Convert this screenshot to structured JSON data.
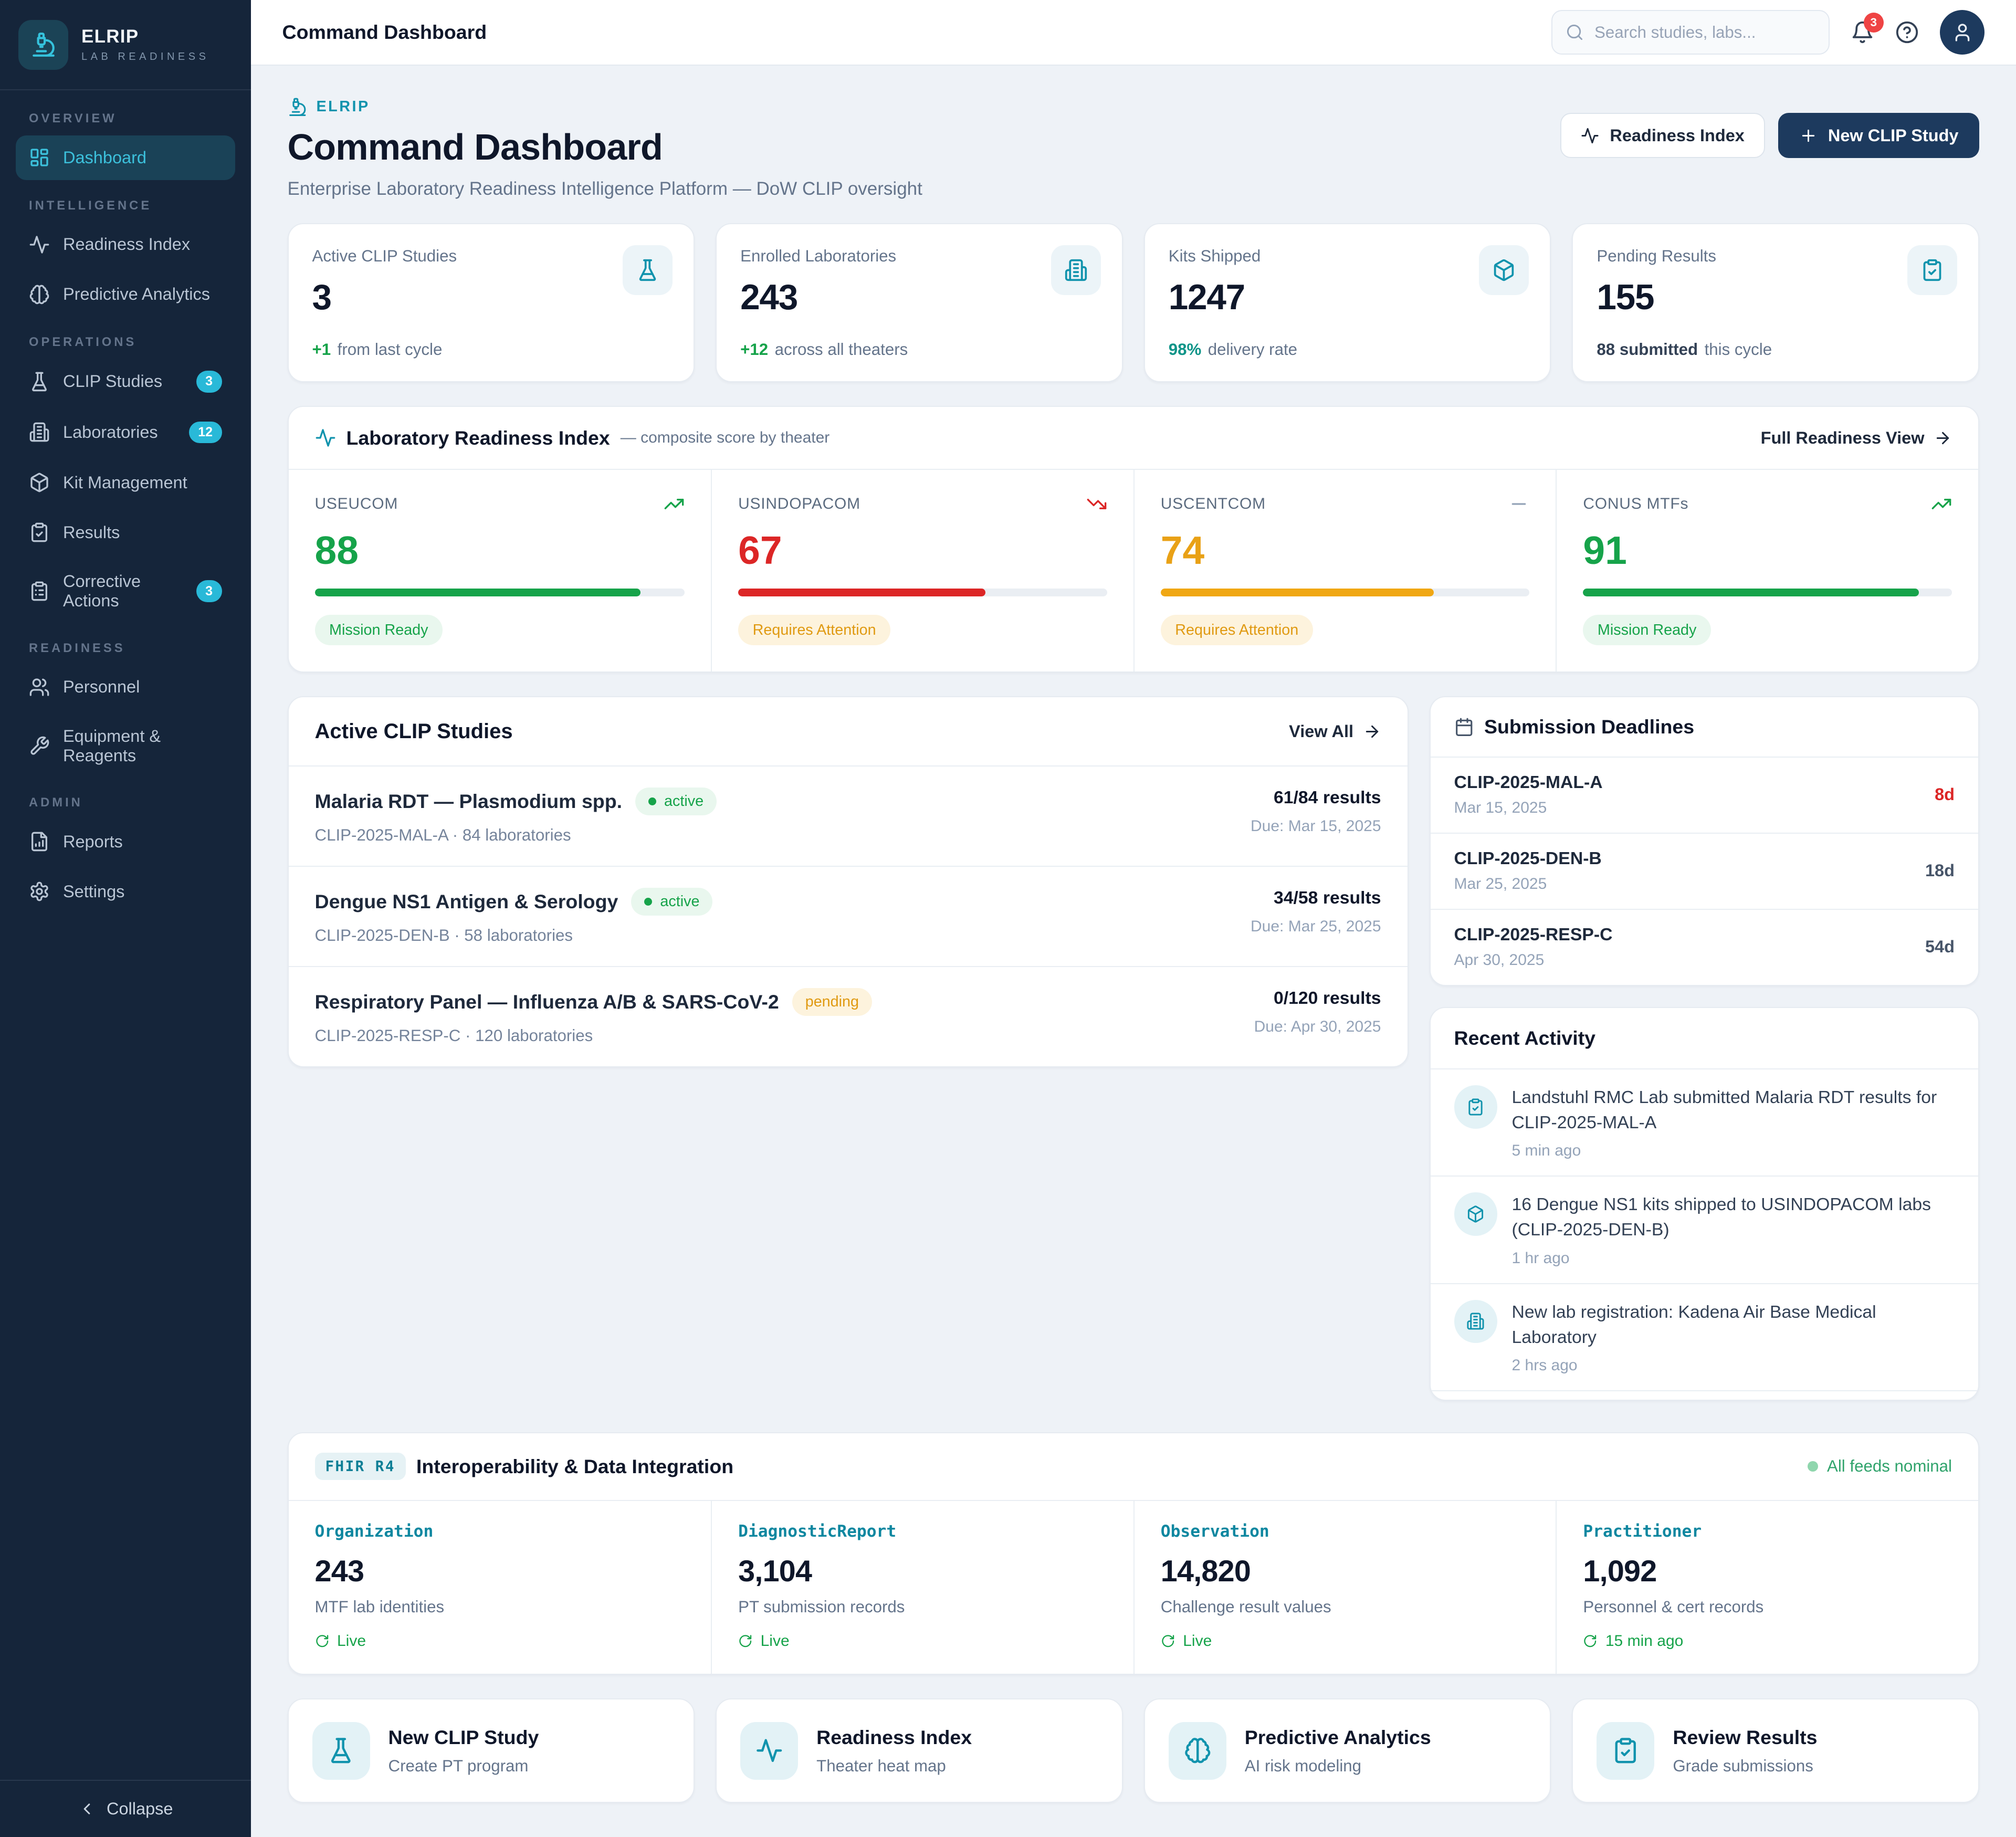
{
  "colors": {
    "sidebar_navy": "#15253a",
    "accent_cyan": "#3cc1dc",
    "accent_teal": "#1193ad",
    "primary_navy": "#1d3a5e",
    "green": "#16a34a",
    "red": "#dc2626",
    "amber": "#f0a714",
    "badge_cyan": "#29b9d8",
    "notification_red": "#ef4444"
  },
  "topbar": {
    "title": "Command Dashboard",
    "search_placeholder": "Search studies, labs...",
    "notification_count": "3"
  },
  "sidebar": {
    "brand": {
      "name": "ELRIP",
      "tagline": "LAB READINESS",
      "icon": "microscope-icon"
    },
    "sections": [
      {
        "label": "OVERVIEW",
        "items": [
          {
            "label": "Dashboard",
            "icon": "dashboard-icon",
            "active": true
          }
        ]
      },
      {
        "label": "INTELLIGENCE",
        "items": [
          {
            "label": "Readiness Index",
            "icon": "activity-icon"
          },
          {
            "label": "Predictive Analytics",
            "icon": "brain-icon"
          }
        ]
      },
      {
        "label": "OPERATIONS",
        "items": [
          {
            "label": "CLIP Studies",
            "icon": "flask-icon",
            "badge": "3"
          },
          {
            "label": "Laboratories",
            "icon": "building-icon",
            "badge": "12"
          },
          {
            "label": "Kit Management",
            "icon": "package-icon"
          },
          {
            "label": "Results",
            "icon": "clipboard-check-icon"
          },
          {
            "label": "Corrective Actions",
            "icon": "clipboard-list-icon",
            "badge": "3"
          }
        ]
      },
      {
        "label": "READINESS",
        "items": [
          {
            "label": "Personnel",
            "icon": "users-icon"
          },
          {
            "label": "Equipment & Reagents",
            "icon": "wrench-icon"
          }
        ]
      },
      {
        "label": "ADMIN",
        "items": [
          {
            "label": "Reports",
            "icon": "report-icon"
          },
          {
            "label": "Settings",
            "icon": "gear-icon"
          }
        ]
      }
    ],
    "collapse_label": "Collapse"
  },
  "header": {
    "eyebrow": "ELRIP",
    "title": "Command Dashboard",
    "subtitle": "Enterprise Laboratory Readiness Intelligence Platform — DoW CLIP oversight",
    "buttons": {
      "secondary": "Readiness Index",
      "primary": "New CLIP Study"
    }
  },
  "stats": [
    {
      "label": "Active CLIP Studies",
      "value": "3",
      "highlight": "+1",
      "note": "from last cycle",
      "icon": "flask-icon"
    },
    {
      "label": "Enrolled Laboratories",
      "value": "243",
      "highlight": "+12",
      "note": "across all theaters",
      "icon": "building-icon"
    },
    {
      "label": "Kits Shipped",
      "value": "1247",
      "highlight": "98%",
      "note": "delivery rate",
      "icon": "package-icon"
    },
    {
      "label": "Pending Results",
      "value": "155",
      "highlight": "88 submitted",
      "note": "this cycle",
      "icon": "clipboard-check-icon"
    }
  ],
  "readiness": {
    "title": "Laboratory Readiness Index",
    "subtitle": "— composite score by theater",
    "link": "Full Readiness View",
    "theaters": [
      {
        "name": "USEUCOM",
        "score": 88,
        "trend": "up",
        "status": "Mission Ready",
        "tone": "green"
      },
      {
        "name": "USINDOPACOM",
        "score": 67,
        "trend": "down",
        "status": "Requires Attention",
        "tone": "red"
      },
      {
        "name": "USCENTCOM",
        "score": 74,
        "trend": "flat",
        "status": "Requires Attention",
        "tone": "amber"
      },
      {
        "name": "CONUS MTFs",
        "score": 91,
        "trend": "up",
        "status": "Mission Ready",
        "tone": "green"
      }
    ]
  },
  "studies": {
    "title": "Active CLIP Studies",
    "view_all": "View All",
    "rows": [
      {
        "name": "Malaria RDT — Plasmodium spp.",
        "badge": "active",
        "code_line": "CLIP-2025-MAL-A · 84 laboratories",
        "results": "61/84 results",
        "due": "Due: Mar 15, 2025"
      },
      {
        "name": "Dengue NS1 Antigen & Serology",
        "badge": "active",
        "code_line": "CLIP-2025-DEN-B · 58 laboratories",
        "results": "34/58 results",
        "due": "Due: Mar 25, 2025"
      },
      {
        "name": "Respiratory Panel — Influenza A/B & SARS-CoV-2",
        "badge": "pending",
        "code_line": "CLIP-2025-RESP-C · 120 laboratories",
        "results": "0/120 results",
        "due": "Due: Apr 30, 2025"
      }
    ]
  },
  "deadlines": {
    "title": "Submission Deadlines",
    "rows": [
      {
        "code": "CLIP-2025-MAL-A",
        "date": "Mar 15, 2025",
        "days": "8d"
      },
      {
        "code": "CLIP-2025-DEN-B",
        "date": "Mar 25, 2025",
        "days": "18d"
      },
      {
        "code": "CLIP-2025-RESP-C",
        "date": "Apr 30, 2025",
        "days": "54d"
      }
    ]
  },
  "activity": {
    "title": "Recent Activity",
    "items": [
      {
        "icon": "clipboard-check-icon",
        "text": "Landstuhl RMC Lab submitted Malaria RDT results for CLIP-2025-MAL-A",
        "time": "5 min ago"
      },
      {
        "icon": "package-icon",
        "text": "16 Dengue NS1 kits shipped to USINDOPACOM labs (CLIP-2025-DEN-B)",
        "time": "1 hr ago"
      },
      {
        "icon": "building-icon",
        "text": "New lab registration: Kadena Air Base Medical Laboratory",
        "time": "2 hrs ago"
      }
    ]
  },
  "fhir": {
    "badge": "FHIR R4",
    "title": "Interoperability & Data Integration",
    "status": "All feeds nominal",
    "resources": [
      {
        "name": "Organization",
        "value": "243",
        "desc": "MTF lab identities",
        "status": "Live"
      },
      {
        "name": "DiagnosticReport",
        "value": "3,104",
        "desc": "PT submission records",
        "status": "Live"
      },
      {
        "name": "Observation",
        "value": "14,820",
        "desc": "Challenge result values",
        "status": "Live"
      },
      {
        "name": "Practitioner",
        "value": "1,092",
        "desc": "Personnel & cert records",
        "status": "15 min ago"
      }
    ]
  },
  "actions": [
    {
      "title": "New CLIP Study",
      "desc": "Create PT program",
      "icon": "flask-icon"
    },
    {
      "title": "Readiness Index",
      "desc": "Theater heat map",
      "icon": "activity-icon"
    },
    {
      "title": "Predictive Analytics",
      "desc": "AI risk modeling",
      "icon": "brain-icon"
    },
    {
      "title": "Review Results",
      "desc": "Grade submissions",
      "icon": "clipboard-check-icon"
    }
  ]
}
